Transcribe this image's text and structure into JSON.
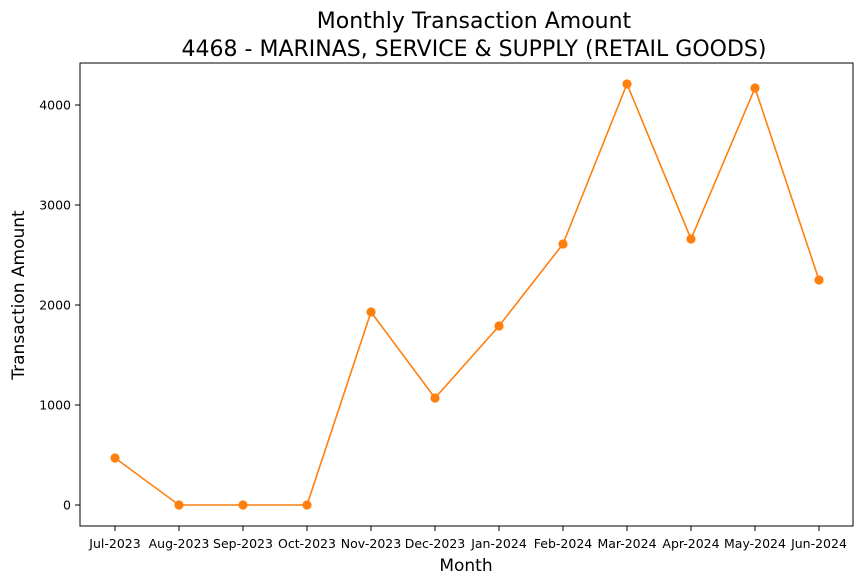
{
  "chart_data": {
    "type": "line",
    "title": "Monthly Transaction Amount",
    "subtitle": "4468 - MARINAS, SERVICE & SUPPLY (RETAIL GOODS)",
    "xlabel": "Month",
    "ylabel": "Transaction Amount",
    "categories": [
      "Jul-2023",
      "Aug-2023",
      "Sep-2023",
      "Oct-2023",
      "Nov-2023",
      "Dec-2023",
      "Jan-2024",
      "Feb-2024",
      "Mar-2024",
      "Apr-2024",
      "May-2024",
      "Jun-2024"
    ],
    "values": [
      470,
      0,
      0,
      0,
      1930,
      1070,
      1790,
      2610,
      4210,
      2660,
      4170,
      2250
    ],
    "ylim": [
      -210,
      4420
    ],
    "yticks": [
      0,
      1000,
      2000,
      3000,
      4000
    ],
    "grid": false,
    "legend": "none",
    "color": "#ff7f0e"
  }
}
